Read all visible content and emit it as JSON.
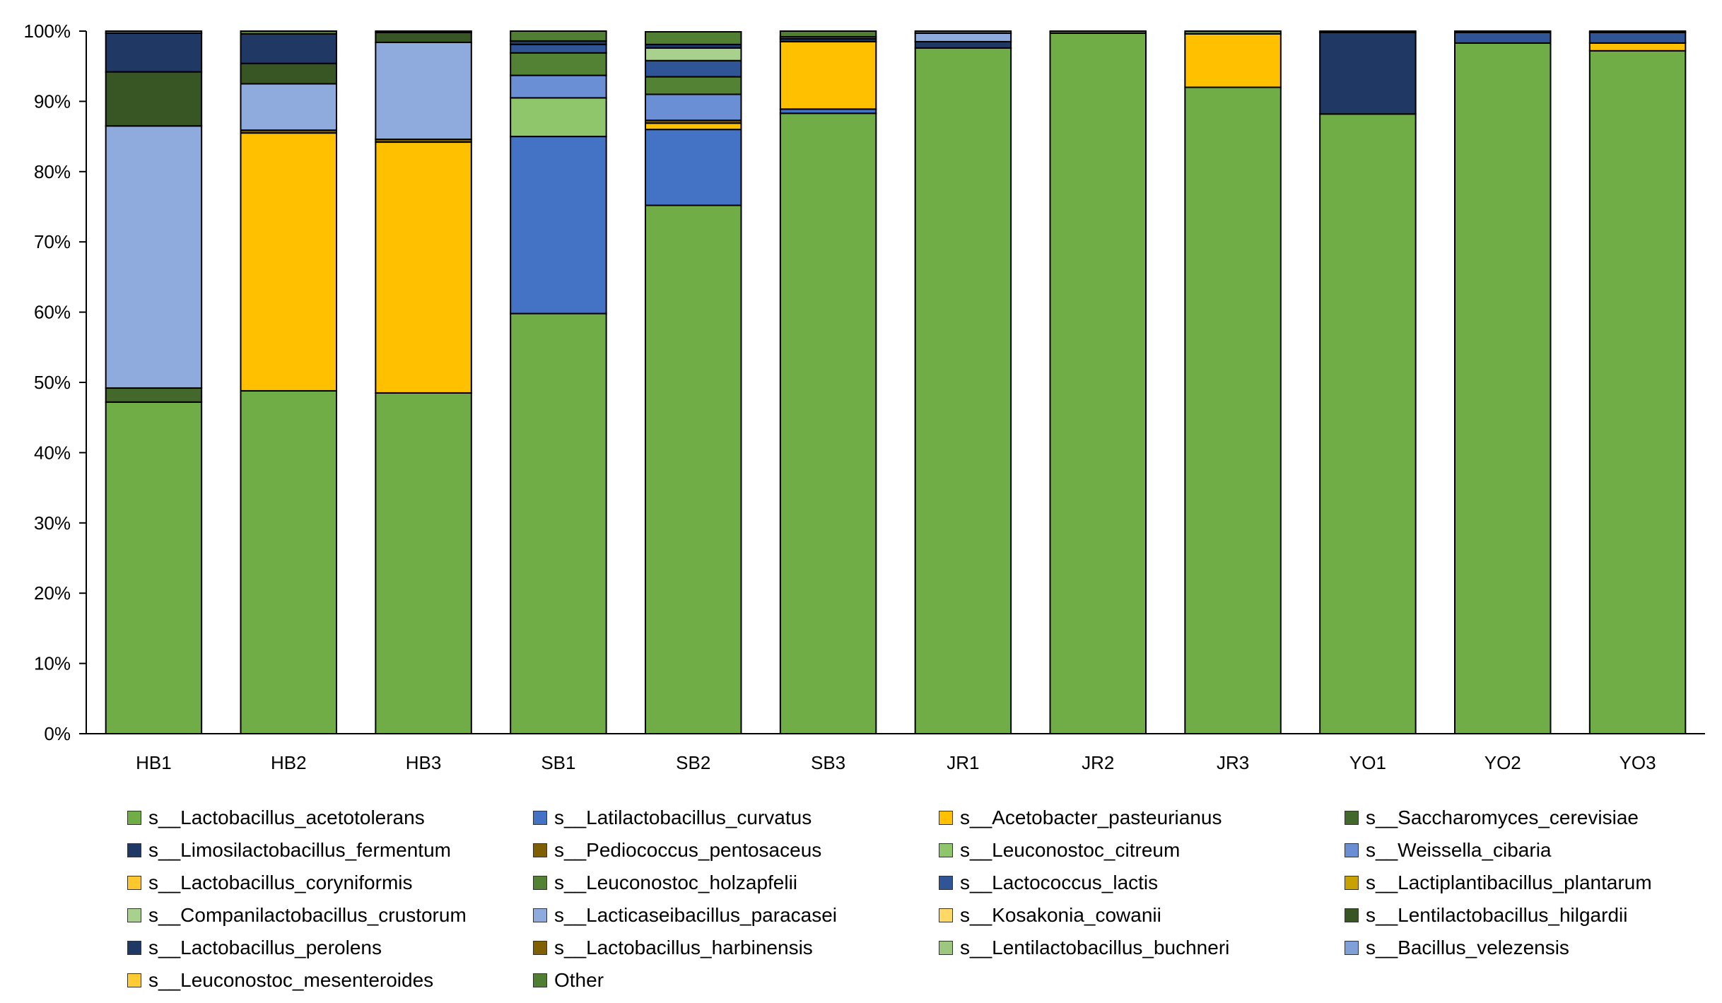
{
  "chart_data": {
    "type": "bar",
    "stacked": true,
    "title": "",
    "xlabel": "",
    "ylabel": "",
    "ylim": [
      0,
      100
    ],
    "y_ticks": [
      "0%",
      "10%",
      "20%",
      "30%",
      "40%",
      "50%",
      "60%",
      "70%",
      "80%",
      "90%",
      "100%"
    ],
    "categories": [
      "HB1",
      "HB2",
      "HB3",
      "SB1",
      "SB2",
      "SB3",
      "JR1",
      "JR2",
      "JR3",
      "YO1",
      "YO2",
      "YO3"
    ],
    "series": [
      {
        "name": "s__Lactobacillus_acetotolerans",
        "color": "#70AD47",
        "values": [
          47.2,
          48.8,
          48.5,
          59.8,
          75.2,
          88.3,
          97.6,
          99.7,
          92.0,
          88.2,
          98.3,
          97.2
        ]
      },
      {
        "name": "s__Latilactobacillus_curvatus",
        "color": "#4472C4",
        "values": [
          0,
          0,
          0,
          25.2,
          10.8,
          0.6,
          0,
          0,
          0,
          0,
          0,
          0
        ]
      },
      {
        "name": "s__Acetobacter_pasteurianus",
        "color": "#FFC000",
        "values": [
          0,
          36.7,
          35.7,
          0,
          0.9,
          9.6,
          0,
          0,
          7.6,
          0,
          0,
          1.1
        ]
      },
      {
        "name": "s__Saccharomyces_cerevisiae",
        "color": "#43682B",
        "values": [
          2.0,
          0,
          0,
          0,
          0,
          0,
          0,
          0,
          0,
          0,
          0,
          0
        ]
      },
      {
        "name": "s__Limosilactobacillus_fermentum",
        "color": "#203864",
        "values": [
          0,
          0,
          0,
          0,
          0,
          0.4,
          0.9,
          0,
          0,
          11.6,
          0,
          0
        ]
      },
      {
        "name": "s__Pediococcus_pentosaceus",
        "color": "#7F6000",
        "values": [
          0,
          0.4,
          0.4,
          0,
          0.4,
          0,
          0,
          0,
          0,
          0,
          0,
          0
        ]
      },
      {
        "name": "s__Leuconostoc_citreum",
        "color": "#8FC56B",
        "values": [
          0,
          0,
          0,
          5.5,
          0,
          0,
          0,
          0,
          0,
          0,
          0,
          0
        ]
      },
      {
        "name": "s__Weissella_cibaria",
        "color": "#6A8FD4",
        "values": [
          0,
          0,
          0,
          3.2,
          3.7,
          0,
          0,
          0,
          0,
          0,
          0,
          0
        ]
      },
      {
        "name": "s__Lactobacillus_coryniformis",
        "color": "#FFC72E",
        "values": [
          0,
          0,
          0,
          0,
          0,
          0,
          0,
          0,
          0,
          0,
          0,
          0
        ]
      },
      {
        "name": "s__Leuconostoc_holzapfelii",
        "color": "#548235",
        "values": [
          0,
          0,
          0,
          3.2,
          2.5,
          0,
          0,
          0,
          0,
          0,
          0,
          0
        ]
      },
      {
        "name": "s__Lactococcus_lactis",
        "color": "#2F5597",
        "values": [
          0,
          0,
          0,
          1.2,
          2.3,
          0.3,
          0,
          0,
          0,
          0,
          1.5,
          1.5
        ]
      },
      {
        "name": "s__Lactiplantibacillus_plantarum",
        "color": "#C9A100",
        "values": [
          0,
          0,
          0,
          0,
          0,
          0,
          0,
          0,
          0,
          0,
          0,
          0
        ]
      },
      {
        "name": "s__Companilactobacillus_crustorum",
        "color": "#A9D18E",
        "values": [
          0,
          0,
          0,
          0,
          1.8,
          0,
          0,
          0,
          0,
          0,
          0,
          0
        ]
      },
      {
        "name": "s__Lacticaseibacillus_paracasei",
        "color": "#8FAADC",
        "values": [
          37.3,
          6.6,
          13.8,
          0,
          0,
          0,
          1.2,
          0,
          0,
          0,
          0,
          0
        ]
      },
      {
        "name": "s__Kosakonia_cowanii",
        "color": "#FFD966",
        "values": [
          0,
          0,
          0,
          0,
          0,
          0,
          0,
          0,
          0,
          0,
          0,
          0
        ]
      },
      {
        "name": "s__Lentilactobacillus_hilgardii",
        "color": "#375623",
        "values": [
          7.7,
          2.9,
          1.4,
          0,
          0,
          0,
          0,
          0,
          0,
          0,
          0,
          0
        ]
      },
      {
        "name": "s__Lactobacillus_perolens",
        "color": "#1F3864",
        "values": [
          5.5,
          4.2,
          0,
          0.5,
          0.5,
          0,
          0,
          0,
          0,
          0,
          0,
          0
        ]
      },
      {
        "name": "s__Lactobacillus_harbinensis",
        "color": "#806000",
        "values": [
          0,
          0,
          0,
          0,
          0,
          0,
          0,
          0,
          0,
          0,
          0,
          0
        ]
      },
      {
        "name": "s__Lentilactobacillus_buchneri",
        "color": "#9DC77E",
        "values": [
          0,
          0,
          0,
          0,
          0,
          0,
          0,
          0,
          0,
          0,
          0,
          0
        ]
      },
      {
        "name": "s__Bacillus_velezensis",
        "color": "#7FA0D9",
        "values": [
          0,
          0,
          0,
          0,
          0,
          0,
          0,
          0,
          0,
          0,
          0,
          0
        ]
      },
      {
        "name": "s__Leuconostoc_mesenteroides",
        "color": "#FFCC33",
        "values": [
          0,
          0,
          0,
          0,
          0,
          0,
          0,
          0,
          0,
          0,
          0,
          0
        ]
      },
      {
        "name": "Other",
        "color": "#507E32",
        "values": [
          0.3,
          0.4,
          0.2,
          1.4,
          1.8,
          0.8,
          0.3,
          0.3,
          0.4,
          0.2,
          0.2,
          0.2
        ]
      }
    ]
  }
}
